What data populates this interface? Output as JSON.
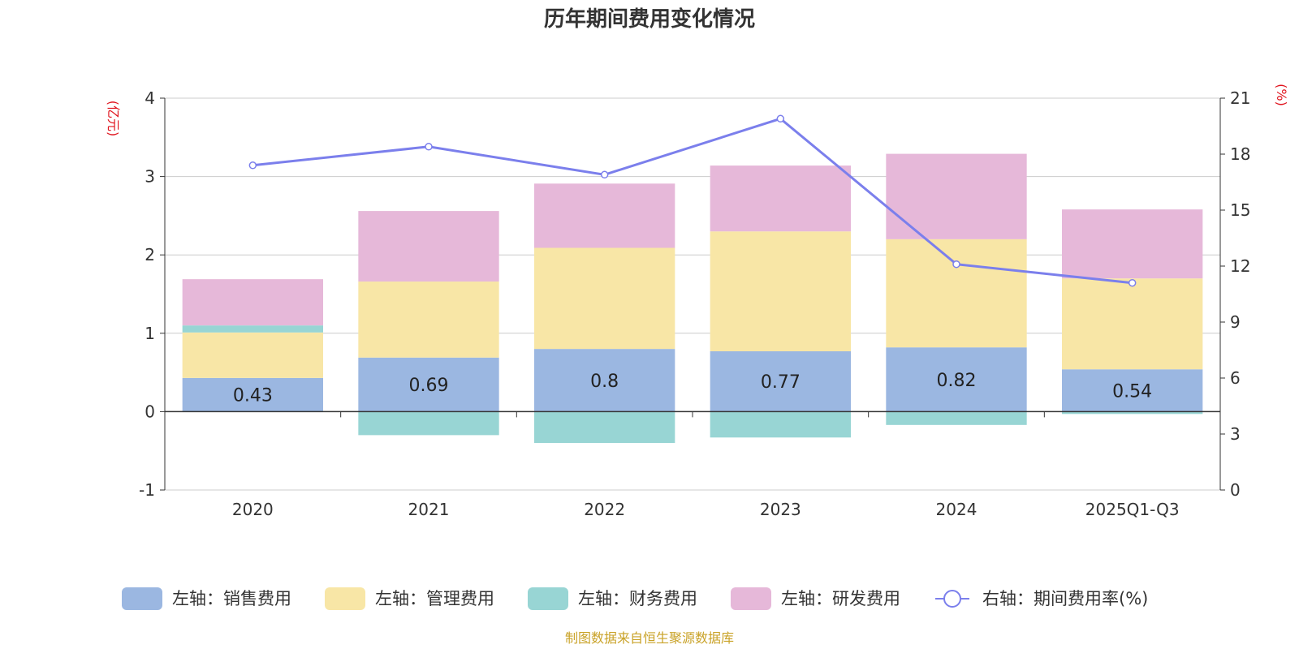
{
  "chart_data": {
    "type": "bar",
    "stacked": true,
    "title": "历年期间费用变化情况",
    "categories": [
      "2020",
      "2021",
      "2022",
      "2023",
      "2024",
      "2025Q1-Q3"
    ],
    "left_axis": {
      "unit": "(亿元)",
      "ylim": [
        -1,
        4
      ],
      "ticks": [
        -1,
        0,
        1,
        2,
        3,
        4
      ]
    },
    "right_axis": {
      "unit": "(%)",
      "ylim": [
        0,
        21
      ],
      "ticks": [
        0,
        3,
        6,
        9,
        12,
        15,
        18,
        21
      ]
    },
    "series": [
      {
        "name": "左轴：销售费用",
        "color": "#9bb7e1",
        "values": [
          0.43,
          0.69,
          0.8,
          0.77,
          0.82,
          0.54
        ],
        "show_labels": true
      },
      {
        "name": "左轴：管理费用",
        "color": "#f8e6a6",
        "values": [
          0.58,
          0.97,
          1.29,
          1.53,
          1.38,
          1.16
        ]
      },
      {
        "name": "左轴：财务费用",
        "color": "#98d5d4",
        "values": [
          0.09,
          -0.3,
          -0.4,
          -0.33,
          -0.17,
          -0.03
        ]
      },
      {
        "name": "左轴：研发费用",
        "color": "#e6b8d9",
        "values": [
          0.59,
          0.9,
          0.82,
          0.84,
          1.09,
          0.88
        ]
      }
    ],
    "line": {
      "name": "右轴：期间费用率(%)",
      "color": "#7b7fec",
      "values": [
        17.4,
        18.4,
        16.9,
        19.9,
        12.1,
        11.1
      ]
    }
  },
  "source": {
    "text": "制图数据来自恒生聚源数据库",
    "color": "#c9a227"
  },
  "colors": {
    "axis_unit": "#e0141e",
    "grid": "#cccccc",
    "axis": "#333333"
  }
}
